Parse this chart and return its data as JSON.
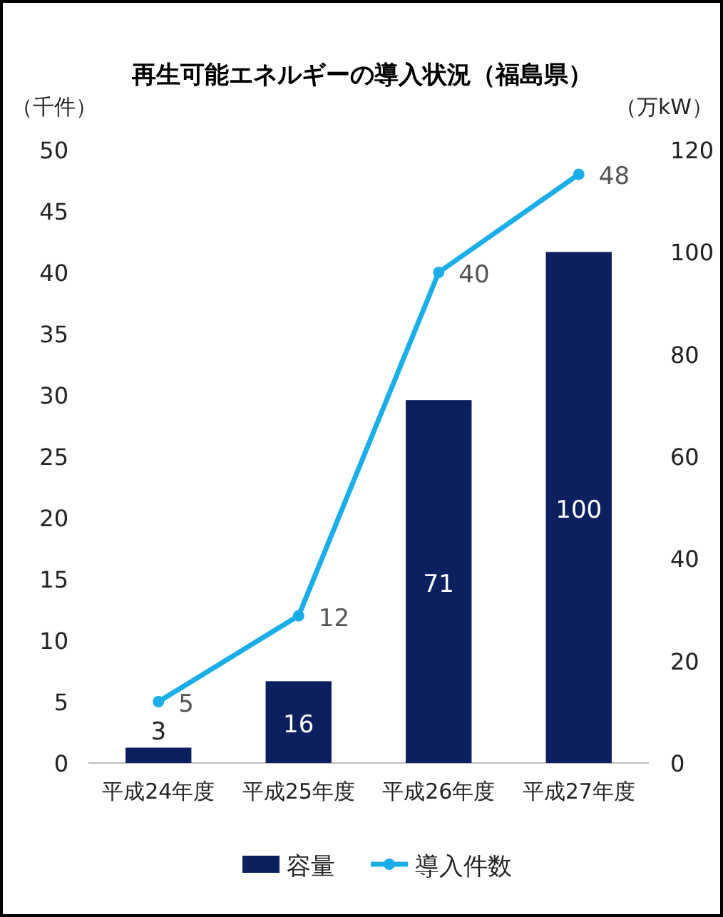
{
  "chart_data": {
    "type": "bar",
    "title": "再生可能エネルギーの導入状況（福島県）",
    "ylabel": "（千件）",
    "y2label": "（万kW）",
    "categories": [
      "平成24年度",
      "平成25年度",
      "平成26年度",
      "平成27年度"
    ],
    "series": [
      {
        "name": "容量",
        "axis": "y2",
        "color": "#0c1f5e",
        "values": [
          3,
          16,
          71,
          100
        ]
      },
      {
        "name": "導入件数",
        "type": "line",
        "axis": "y",
        "color": "#1aaee8",
        "values": [
          5,
          12,
          40,
          48
        ]
      }
    ],
    "ylim": [
      0,
      50
    ],
    "yticks": [
      0,
      5,
      10,
      15,
      20,
      25,
      30,
      35,
      40,
      45,
      50
    ],
    "y2lim": [
      0,
      120
    ],
    "y2ticks": [
      0,
      20,
      40,
      60,
      80,
      100,
      120
    ],
    "data_labels": true,
    "marker": "circle",
    "legend": "bottom",
    "grid": false
  }
}
